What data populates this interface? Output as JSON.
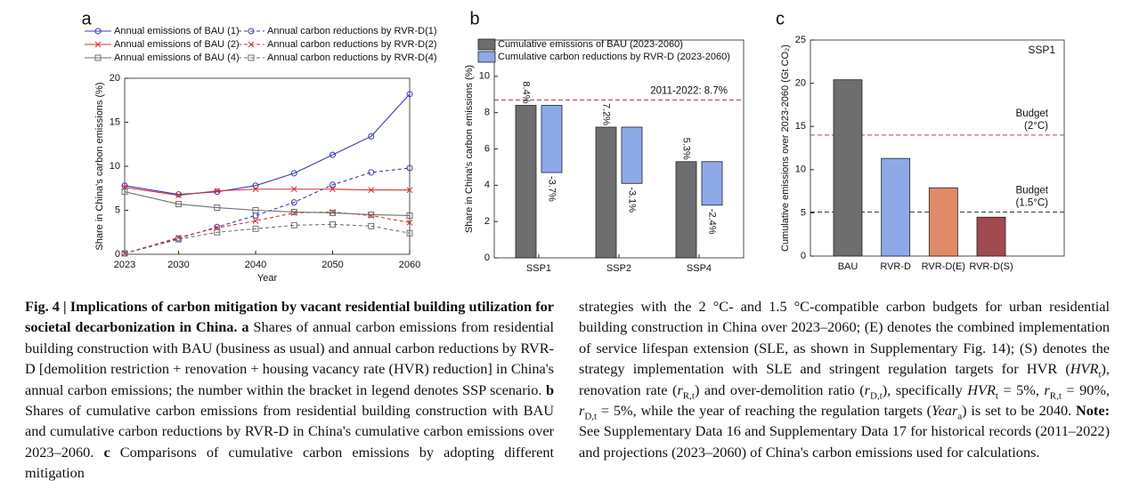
{
  "chart_data": [
    {
      "type": "line",
      "panel": "a",
      "xlabel": "Year",
      "ylabel": "Share in China's carbon emissions (%)",
      "x": [
        2023,
        2030,
        2035,
        2040,
        2045,
        2050,
        2055,
        2060
      ],
      "xlim": [
        2023,
        2060
      ],
      "xticks": [
        2023,
        2030,
        2040,
        2050,
        2060
      ],
      "ylim": [
        0,
        20
      ],
      "yticks": [
        0,
        5,
        10,
        15,
        20
      ],
      "series": [
        {
          "name": "Annual emissions of BAU (1)",
          "color": "#3a3ab0",
          "marker": "circle",
          "linestyle": "solid",
          "values": [
            7.8,
            6.8,
            7.1,
            7.8,
            9.2,
            11.3,
            13.4,
            18.2
          ]
        },
        {
          "name": "Annual carbon reductions by RVR-D(1)",
          "color": "#3a3ab0",
          "marker": "circle",
          "linestyle": "dashed",
          "values": [
            0.1,
            1.8,
            3.1,
            4.4,
            5.9,
            7.9,
            9.3,
            9.8
          ]
        },
        {
          "name": "Annual emissions of BAU (2)",
          "color": "#d83030",
          "marker": "x",
          "linestyle": "solid",
          "values": [
            7.6,
            6.7,
            7.2,
            7.4,
            7.4,
            7.4,
            7.3,
            7.3
          ]
        },
        {
          "name": "Annual carbon reductions by RVR-D(2)",
          "color": "#d83030",
          "marker": "x",
          "linestyle": "dashed",
          "values": [
            0.1,
            1.9,
            3.0,
            3.8,
            4.7,
            4.8,
            4.4,
            3.6
          ]
        },
        {
          "name": "Annual emissions of BAU (4)",
          "color": "#707070",
          "marker": "square",
          "linestyle": "solid",
          "values": [
            7.1,
            5.7,
            5.3,
            5.0,
            4.8,
            4.7,
            4.5,
            4.4
          ]
        },
        {
          "name": "Annual carbon reductions by RVR-D(4)",
          "color": "#707070",
          "marker": "square",
          "linestyle": "dashed",
          "values": [
            0.1,
            1.7,
            2.5,
            2.9,
            3.3,
            3.4,
            3.2,
            2.4
          ]
        }
      ]
    },
    {
      "type": "bar",
      "panel": "b",
      "ylabel": "Share in China's carbon emissions (%)",
      "categories": [
        "SSP1",
        "SSP2",
        "SSP4"
      ],
      "ylim": [
        0,
        12
      ],
      "yticks": [
        0,
        2,
        4,
        6,
        8,
        10
      ],
      "series": [
        {
          "name": "Cumulative emissions of BAU (2023-2060)",
          "color": "#6e6e6e",
          "values": [
            8.4,
            7.2,
            5.3
          ],
          "value_labels": [
            "8.4%",
            "7.2%",
            "5.3%"
          ]
        },
        {
          "name": "Cumulative carbon reductions by RVR-D (2023-2060)",
          "color": "#8ea9e8",
          "values": [
            -3.7,
            -3.1,
            -2.4
          ],
          "value_labels": [
            "-3.7%",
            "-3.1%",
            "-2.4%"
          ]
        }
      ],
      "reference_lines": [
        {
          "value": 8.7,
          "label": "2011-2022: 8.7%",
          "color": "#a0304a"
        }
      ]
    },
    {
      "type": "bar",
      "panel": "c",
      "ylabel": "Cumulative emissions over 2023-2060 (Gt CO₂)",
      "annotation": "SSP1",
      "categories": [
        "BAU",
        "RVR-D",
        "RVR-D(E)",
        "RVR-D(S)"
      ],
      "values": [
        20.4,
        11.3,
        7.9,
        4.5
      ],
      "colors": [
        "#6e6e6e",
        "#8ea9e8",
        "#e08a6a",
        "#a04a50"
      ],
      "ylim": [
        0,
        25
      ],
      "yticks": [
        0,
        5,
        10,
        15,
        20,
        25
      ],
      "reference_lines": [
        {
          "value": 14.0,
          "label": [
            "Budget",
            "(2°C)"
          ],
          "color": "#a0304a"
        },
        {
          "value": 5.1,
          "label": [
            "Budget",
            "(1.5°C)"
          ],
          "color": "#222222"
        }
      ]
    }
  ],
  "caption": {
    "columns": [
      [
        {
          "text": "Fig. 4 | Implications of carbon mitigation by vacant residential building utilization for societal decarbonization in China.",
          "style": "bold"
        },
        {
          "text": " "
        },
        {
          "text": "a",
          "style": "bold"
        },
        {
          "text": " Shares of annual carbon emissions from residential building construction with BAU (business as usual) and annual carbon reductions by RVR-D [demolition restriction + renovation + housing vacancy rate (HVR) reduction] in China's annual carbon emissions; the number within the bracket in legend denotes SSP scenario. "
        },
        {
          "text": "b",
          "style": "bold"
        },
        {
          "text": " Shares of cumulative carbon emissions from residential building construction with BAU and cumulative carbon reductions by RVR-D in China's cumulative carbon emissions over 2023–2060. "
        },
        {
          "text": "c",
          "style": "bold"
        },
        {
          "text": " Comparisons of cumulative carbon emissions by adopting different mitigation"
        }
      ],
      [
        {
          "text": "strategies with the 2 °C- and 1.5 °C-compatible carbon budgets for urban residential building construction in China over 2023–2060; (E) denotes the combined implementation of service lifespan extension (SLE, as shown in Supplementary Fig. 14); (S) denotes the strategy implementation with SLE and stringent regulation targets for HVR ("
        },
        {
          "text": "HVR",
          "style": "italic"
        },
        {
          "text": "t",
          "style": "sub"
        },
        {
          "text": "), renovation rate ("
        },
        {
          "text": "r",
          "style": "italic"
        },
        {
          "text": "R,t",
          "style": "sub"
        },
        {
          "text": ") and over-demolition ratio ("
        },
        {
          "text": "r",
          "style": "italic"
        },
        {
          "text": "D,t",
          "style": "sub"
        },
        {
          "text": "), specifically "
        },
        {
          "text": "HVR",
          "style": "italic"
        },
        {
          "text": "t",
          "style": "sub"
        },
        {
          "text": " = 5%, "
        },
        {
          "text": "r",
          "style": "italic"
        },
        {
          "text": "R,t",
          "style": "sub"
        },
        {
          "text": " = 90%, "
        },
        {
          "text": "r",
          "style": "italic"
        },
        {
          "text": "D,t",
          "style": "sub"
        },
        {
          "text": " = 5%, while the year of reaching the regulation targets ("
        },
        {
          "text": "Year",
          "style": "italic"
        },
        {
          "text": "a",
          "style": "sub"
        },
        {
          "text": ") is set to be 2040. "
        },
        {
          "text": "Note:",
          "style": "bold"
        },
        {
          "text": " See Supplementary Data 16 and Supplementary Data 17 for historical records (2011–2022) and projections (2023–2060) of China's carbon emissions used for calculations."
        }
      ]
    ]
  }
}
